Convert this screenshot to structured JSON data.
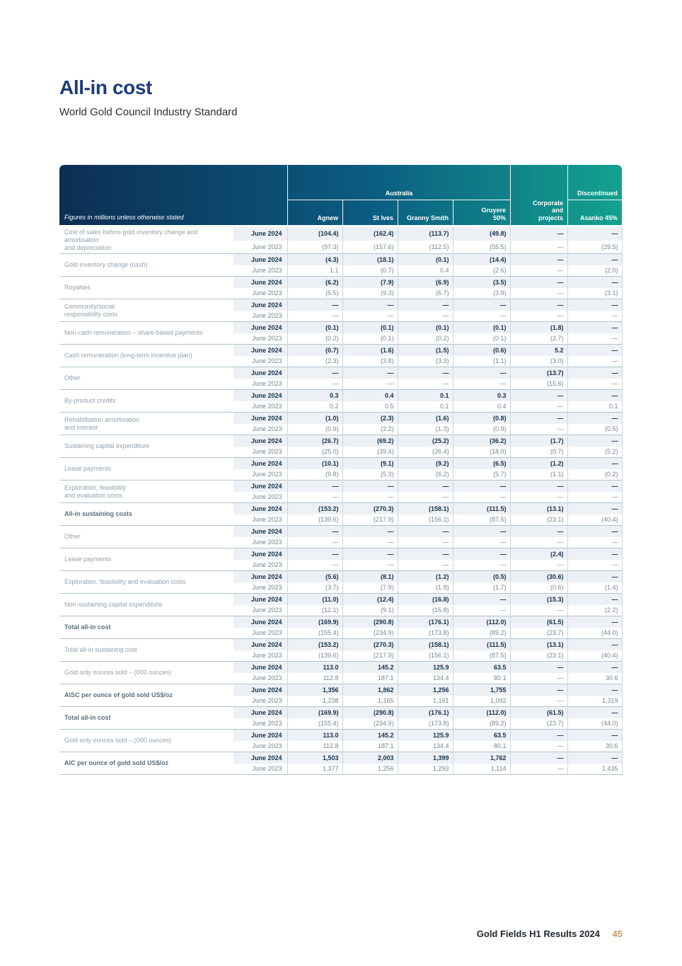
{
  "header": {
    "title": "All-in cost",
    "subtitle": "World Gold Council Industry Standard"
  },
  "table": {
    "note": "Figures in millions unless otherwise stated",
    "group_labels": {
      "australia": "Australia",
      "discontinued": "Discontinued"
    },
    "australia_columns": [
      "Agnew",
      "St Ives",
      "Granny Smith",
      "Gruyere\n50%"
    ],
    "corporate_column": "Corporate\nand\nprojects",
    "discontinued_column": "Asanko 45%",
    "period_labels": [
      "June 2024",
      "June 2023"
    ],
    "rows": [
      {
        "label": "Cost of sales before gold inventory change and\namortisation\nand depreciation",
        "bold": false,
        "y2024": [
          "(104.4)",
          "(162.4)",
          "(113.7)",
          "(49.8)",
          "—",
          "—"
        ],
        "y2023": [
          "(97.3)",
          "(157.6)",
          "(112.5)",
          "(55.5)",
          "—",
          "(29.5)"
        ]
      },
      {
        "label": "Gold inventory change (cash)",
        "bold": false,
        "y2024": [
          "(4.3)",
          "(18.1)",
          "(0.1)",
          "(14.4)",
          "—",
          "—"
        ],
        "y2023": [
          "1.1",
          "(0.7)",
          "0.4",
          "(2.6)",
          "—",
          "(2.0)"
        ]
      },
      {
        "label": "Royalties",
        "bold": false,
        "y2024": [
          "(6.2)",
          "(7.9)",
          "(6.9)",
          "(3.5)",
          "—",
          "—"
        ],
        "y2023": [
          "(5.5)",
          "(9.3)",
          "(6.7)",
          "(3.9)",
          "—",
          "(3.1)"
        ]
      },
      {
        "label": "Community/social\nresponsibility costs",
        "bold": false,
        "y2024": [
          "—",
          "—",
          "—",
          "—",
          "—",
          "—"
        ],
        "y2023": [
          "—",
          "—",
          "—",
          "—",
          "—",
          "—"
        ]
      },
      {
        "label": "Non-cash remuneration – share-based payments",
        "bold": false,
        "y2024": [
          "(0.1)",
          "(0.1)",
          "(0.1)",
          "(0.1)",
          "(1.8)",
          "—"
        ],
        "y2023": [
          "(0.2)",
          "(0.1)",
          "(0.2)",
          "(0.1)",
          "(2.7)",
          "—"
        ]
      },
      {
        "label": "Cash remuneration (long-term incentive plan)",
        "bold": false,
        "y2024": [
          "(0.7)",
          "(1.6)",
          "(1.5)",
          "(0.6)",
          "5.2",
          "—"
        ],
        "y2023": [
          "(2.3)",
          "(3.8)",
          "(3.3)",
          "(1.1)",
          "(3.0)",
          "—"
        ]
      },
      {
        "label": "Other",
        "bold": false,
        "y2024": [
          "—",
          "—",
          "—",
          "—",
          "(13.7)",
          "—"
        ],
        "y2023": [
          "—",
          "—",
          "—",
          "—",
          "(15.6)",
          "—"
        ]
      },
      {
        "label": "By-product credits",
        "bold": false,
        "y2024": [
          "0.3",
          "0.4",
          "0.1",
          "0.3",
          "—",
          "—"
        ],
        "y2023": [
          "0.2",
          "0.5",
          "0.1",
          "0.4",
          "—",
          "0.1"
        ]
      },
      {
        "label": "Rehabilitation amortisation\nand interest",
        "bold": false,
        "y2024": [
          "(1.0)",
          "(2.3)",
          "(1.6)",
          "(0.8)",
          "—",
          "—"
        ],
        "y2023": [
          "(0.9)",
          "(2.2)",
          "(1.3)",
          "(0.9)",
          "—",
          "(0.5)"
        ]
      },
      {
        "label": "Sustaining capital expenditure",
        "bold": false,
        "y2024": [
          "(26.7)",
          "(69.2)",
          "(25.2)",
          "(36.2)",
          "(1.7)",
          "—"
        ],
        "y2023": [
          "(25.0)",
          "(39.4)",
          "(26.4)",
          "(18.0)",
          "(0.7)",
          "(5.2)"
        ]
      },
      {
        "label": "Lease payments",
        "bold": false,
        "y2024": [
          "(10.1)",
          "(9.1)",
          "(9.2)",
          "(6.5)",
          "(1.2)",
          "—"
        ],
        "y2023": [
          "(9.8)",
          "(5.3)",
          "(6.2)",
          "(5.7)",
          "(1.1)",
          "(0.2)"
        ]
      },
      {
        "label": "Exploration, feasibility\nand evaluation costs",
        "bold": false,
        "y2024": [
          "—",
          "—",
          "—",
          "—",
          "—",
          "—"
        ],
        "y2023": [
          "—",
          "—",
          "—",
          "—",
          "—",
          "—"
        ]
      },
      {
        "label": "All-in sustaining costs",
        "bold": true,
        "y2024": [
          "(153.2)",
          "(270.3)",
          "(158.1)",
          "(111.5)",
          "(13.1)",
          "—"
        ],
        "y2023": [
          "(139.6)",
          "(217.9)",
          "(156.1)",
          "(87.5)",
          "(23.1)",
          "(40.4)"
        ]
      },
      {
        "label": "Other",
        "bold": false,
        "y2024": [
          "—",
          "—",
          "—",
          "—",
          "—",
          "—"
        ],
        "y2023": [
          "—",
          "—",
          "—",
          "—",
          "—",
          "—"
        ]
      },
      {
        "label": "Lease payments",
        "bold": false,
        "y2024": [
          "—",
          "—",
          "—",
          "—",
          "(2.4)",
          "—"
        ],
        "y2023": [
          "—",
          "—",
          "—",
          "—",
          "—",
          "—"
        ]
      },
      {
        "label": "Exploration, feasibility and evaluation costs",
        "bold": false,
        "y2024": [
          "(5.6)",
          "(8.1)",
          "(1.2)",
          "(0.5)",
          "(30.6)",
          "—"
        ],
        "y2023": [
          "(3.7)",
          "(7.9)",
          "(1.9)",
          "(1.7)",
          "(0.6)",
          "(1.4)"
        ]
      },
      {
        "label": "Non-sustaining capital expenditure",
        "bold": false,
        "y2024": [
          "(11.0)",
          "(12.4)",
          "(16.8)",
          "—",
          "(15.3)",
          "—"
        ],
        "y2023": [
          "(12.1)",
          "(9.1)",
          "(15.8)",
          "—",
          "—",
          "(2.2)"
        ]
      },
      {
        "label": "Total all-in cost",
        "bold": true,
        "y2024": [
          "(169.9)",
          "(290.8)",
          "(176.1)",
          "(112.0)",
          "(61.5)",
          "—"
        ],
        "y2023": [
          "(155.4)",
          "(234.9)",
          "(173.8)",
          "(89.2)",
          "(23.7)",
          "(44.0)"
        ]
      },
      {
        "label": "Total all-in sustaining cost",
        "bold": false,
        "y2024": [
          "(153.2)",
          "(270.3)",
          "(158.1)",
          "(111.5)",
          "(13.1)",
          "—"
        ],
        "y2023": [
          "(139.6)",
          "(217.9)",
          "(156.1)",
          "(87.5)",
          "(23.1)",
          "(40.4)"
        ]
      },
      {
        "label": "Gold only ounces sold – (000 ounces)",
        "bold": false,
        "y2024": [
          "113.0",
          "145.2",
          "125.9",
          "63.5",
          "—",
          "—"
        ],
        "y2023": [
          "112.8",
          "187.1",
          "134.4",
          "80.1",
          "—",
          "30.6"
        ]
      },
      {
        "label": "AISC per ounce of gold sold US$/oz",
        "bold": true,
        "y2024": [
          "1,356",
          "1,862",
          "1,256",
          "1,755",
          "—",
          "—"
        ],
        "y2023": [
          "1,238",
          "1,165",
          "1,161",
          "1,092",
          "—",
          "1,319"
        ]
      },
      {
        "label": "Total all-in cost",
        "bold": true,
        "y2024": [
          "(169.9)",
          "(290.8)",
          "(176.1)",
          "(112.0)",
          "(61.5)",
          "—"
        ],
        "y2023": [
          "(155.4)",
          "(234.9)",
          "(173.8)",
          "(89.2)",
          "(23.7)",
          "(44.0)"
        ]
      },
      {
        "label": "Gold only ounces sold – (000 ounces)",
        "bold": false,
        "y2024": [
          "113.0",
          "145.2",
          "125.9",
          "63.5",
          "—",
          "—"
        ],
        "y2023": [
          "112.8",
          "187.1",
          "134.4",
          "80.1",
          "—",
          "30.6"
        ]
      },
      {
        "label": "AIC per ounce of gold sold US$/oz",
        "bold": true,
        "y2024": [
          "1,503",
          "2,003",
          "1,399",
          "1,762",
          "—",
          "—"
        ],
        "y2023": [
          "1,377",
          "1,256",
          "1,293",
          "1,114",
          "—",
          "1,435"
        ]
      }
    ]
  },
  "footer": {
    "text": "Gold Fields H1 Results",
    "year": "2024",
    "page_number": "45"
  },
  "colors": {
    "title": "#1d3c7c",
    "header_gradient_start": "#0d2e53",
    "header_gradient_mid": "#0c5c81",
    "header_gradient_end": "#13a28e",
    "row_highlight": "#edf1f5",
    "value_current": "#16314e",
    "value_prior": "#75868f",
    "row_label": "#93a1ac",
    "separator": "#b0c3d0",
    "page_number": "#c49a62"
  }
}
